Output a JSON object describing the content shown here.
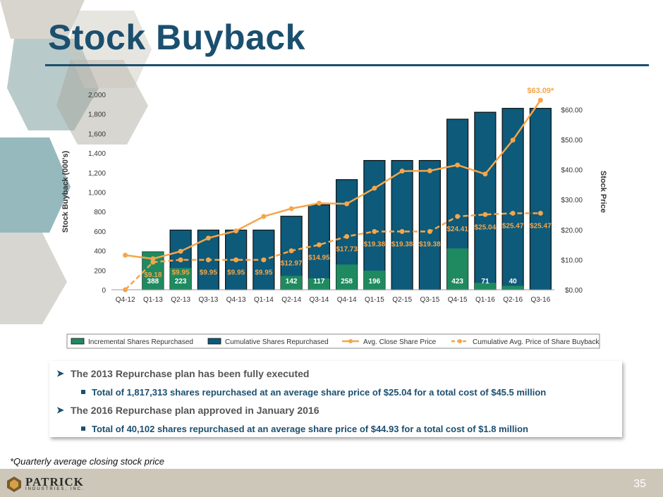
{
  "slide": {
    "title": "Stock Buyback",
    "page_number": "35",
    "footnote": "*Quarterly average closing stock price",
    "logo_name": "PATRICK",
    "logo_sub": "INDUSTRIES, INC."
  },
  "bullets": [
    {
      "level": 1,
      "text": "The 2013 Repurchase plan has been fully executed"
    },
    {
      "level": 2,
      "text": "Total of 1,817,313 shares repurchased at an average share price of $25.04 for a total cost of $45.5 million"
    },
    {
      "level": 1,
      "text": "The 2016 Repurchase plan approved in January 2016"
    },
    {
      "level": 2,
      "text": "Total of 40,102 shares repurchased at an average share price of $44.93 for a total cost of $1.8 million"
    }
  ],
  "colors": {
    "title": "#1b4f6f",
    "cumulative_bar": "#0d5a7a",
    "incremental_bar": "#1f8a5f",
    "price_line": "#f6a54a",
    "label_orange": "#f6a54a"
  },
  "chart_data": {
    "type": "bar",
    "categories": [
      "Q4-12",
      "Q1-13",
      "Q2-13",
      "Q3-13",
      "Q4-13",
      "Q1-14",
      "Q2-14",
      "Q3-14",
      "Q4-14",
      "Q1-15",
      "Q2-15",
      "Q3-15",
      "Q4-15",
      "Q1-16",
      "Q2-16",
      "Q3-16"
    ],
    "ylabel": "Stock Buyback (000's)",
    "y2label": "Stock Price",
    "ylim": [
      0,
      2000
    ],
    "yticks": [
      "0",
      "200",
      "400",
      "600",
      "800",
      "1,000",
      "1,200",
      "1,400",
      "1,600",
      "1,800",
      "2,000"
    ],
    "y2lim": [
      0,
      65
    ],
    "y2ticks": [
      "$0.00",
      "$10.00",
      "$20.00",
      "$30.00",
      "$40.00",
      "$50.00",
      "$60.00"
    ],
    "legend_position": "bottom",
    "series": [
      {
        "name": "Incremental Shares Repurchased",
        "kind": "bar",
        "values": [
          0,
          388,
          223,
          0,
          0,
          0,
          142,
          117,
          258,
          196,
          0,
          0,
          423,
          71,
          40,
          0
        ],
        "labels": [
          "",
          "388",
          "223",
          "",
          "",
          "",
          "142",
          "117",
          "258",
          "196",
          "",
          "",
          "423",
          "71",
          "40",
          ""
        ]
      },
      {
        "name": "Cumulative Shares Repurchased",
        "kind": "bar",
        "values": [
          0,
          388,
          611,
          611,
          611,
          611,
          753,
          870,
          1128,
          1324,
          1324,
          1324,
          1747,
          1818,
          1858,
          1858
        ]
      },
      {
        "name": "Avg. Close Share Price",
        "kind": "line",
        "axis": "right",
        "values": [
          11.5,
          10.3,
          12.8,
          17.2,
          19.6,
          24.4,
          27.0,
          28.8,
          28.6,
          33.8,
          39.5,
          39.6,
          41.5,
          38.5,
          49.8,
          63.09
        ],
        "labels": [
          "",
          "",
          "",
          "",
          "",
          "",
          "",
          "",
          "",
          "",
          "",
          "",
          "",
          "",
          "",
          "$63.09*"
        ]
      },
      {
        "name": "Cumulative Avg. Price of Share Buyback",
        "kind": "line",
        "axis": "right",
        "dashed": true,
        "values": [
          0,
          9.18,
          9.95,
          9.95,
          9.95,
          9.95,
          12.97,
          14.95,
          17.73,
          19.38,
          19.38,
          19.38,
          24.41,
          25.04,
          25.47,
          25.47
        ],
        "labels": [
          "",
          "$9.18",
          "$9.95",
          "$9.95",
          "$9.95",
          "$9.95",
          "$12.97",
          "$14.95",
          "$17.73",
          "$19.38",
          "$19.38",
          "$19.38",
          "$24.41",
          "$25.04",
          "$25.47",
          "$25.47"
        ]
      }
    ]
  }
}
